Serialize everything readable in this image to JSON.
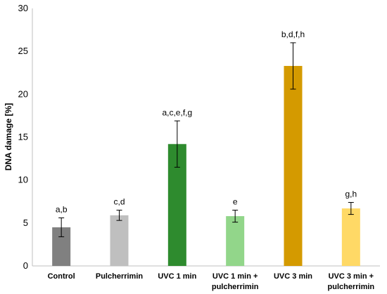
{
  "chart_data": {
    "type": "bar",
    "title": "",
    "xlabel": "",
    "ylabel": "DNA damage [%]",
    "ylim": [
      0,
      30
    ],
    "yticks": [
      0,
      5,
      10,
      15,
      20,
      25,
      30
    ],
    "grid": false,
    "legend": "none",
    "categories": [
      [
        "Control"
      ],
      [
        "Pulcherrimin"
      ],
      [
        "UVC 1 min"
      ],
      [
        "UVC 1 min +",
        "pulcherrimin"
      ],
      [
        "UVC 3 min"
      ],
      [
        "UVC 3 min +",
        "pulcherrimin"
      ]
    ],
    "values": [
      4.5,
      5.9,
      14.2,
      5.8,
      23.3,
      6.7
    ],
    "errors": [
      1.1,
      0.6,
      2.7,
      0.7,
      2.7,
      0.7
    ],
    "significance_labels": [
      "a,b",
      "c,d",
      "a,c,e,f,g",
      "e",
      "b,d,f,h",
      "g,h"
    ],
    "colors": [
      "#808080",
      "#bfbfbf",
      "#2e8b2e",
      "#92d68a",
      "#d49a00",
      "#ffd966"
    ]
  }
}
